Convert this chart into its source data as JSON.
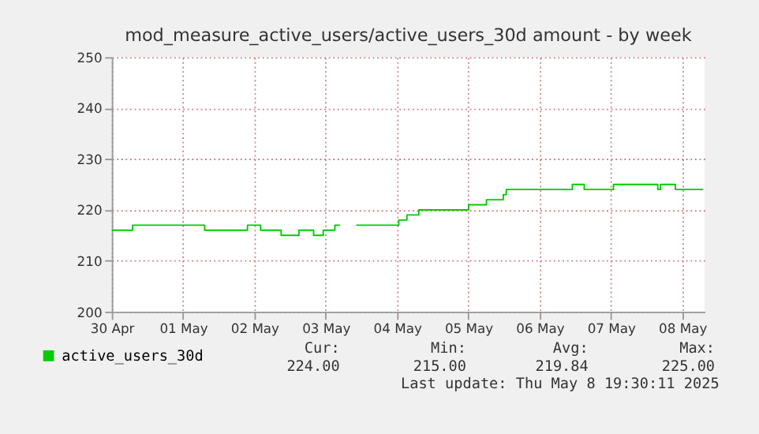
{
  "chart_data": {
    "type": "step",
    "title": "mod_measure_active_users/active_users_30d amount - by week",
    "x": [
      "2025-04-30T12:00",
      "2025-04-30T19:00",
      "2025-05-01T19:15",
      "2025-05-02T09:40",
      "2025-05-02T14:05",
      "2025-05-02T21:00",
      "2025-05-03T03:00",
      "2025-05-03T07:55",
      "2025-05-03T11:10",
      "2025-05-03T15:05",
      "2025-05-03T16:50",
      "2025-05-03T17:00",
      "2025-05-03T22:15",
      "2025-05-04T12:35",
      "2025-05-04T15:20",
      "2025-05-04T19:20",
      "2025-05-05T12:05",
      "2025-05-05T18:05",
      "2025-05-05T23:45",
      "2025-05-06T00:45",
      "2025-05-06T23:00",
      "2025-05-07T03:00",
      "2025-05-07T12:50",
      "2025-05-08T03:45",
      "2025-05-08T04:40",
      "2025-05-08T09:40",
      "2025-05-08T19:00"
    ],
    "series": [
      {
        "name": "active_users_30d",
        "color": "#00cc00",
        "values": [
          216,
          217,
          216,
          217,
          216,
          215,
          216,
          215,
          216,
          217,
          217,
          null,
          217,
          218,
          219,
          220,
          221,
          222,
          223,
          224,
          225,
          224,
          225,
          224,
          225,
          224,
          224
        ]
      }
    ],
    "xlim": [
      "2025-04-30T12:00",
      "2025-05-08T19:30"
    ],
    "xticks": [
      {
        "value": "2025-04-30T12:00",
        "label": "30 Apr"
      },
      {
        "value": "2025-05-01T12:00",
        "label": "01 May"
      },
      {
        "value": "2025-05-02T12:00",
        "label": "02 May"
      },
      {
        "value": "2025-05-03T12:00",
        "label": "03 May"
      },
      {
        "value": "2025-05-04T12:00",
        "label": "04 May"
      },
      {
        "value": "2025-05-05T12:00",
        "label": "05 May"
      },
      {
        "value": "2025-05-06T12:00",
        "label": "06 May"
      },
      {
        "value": "2025-05-07T12:00",
        "label": "07 May"
      },
      {
        "value": "2025-05-08T12:00",
        "label": "08 May"
      }
    ],
    "ylim": [
      200,
      250
    ],
    "yticks": [
      200,
      210,
      220,
      230,
      240,
      250
    ],
    "grid": true,
    "legend": "bottom",
    "annotations": [
      "Cur:",
      "Min:",
      "Avg:",
      "Max:",
      "224.00",
      "215.00",
      "219.84",
      "225.00",
      "Last update: Thu May  8 19:30:11 2025"
    ]
  }
}
